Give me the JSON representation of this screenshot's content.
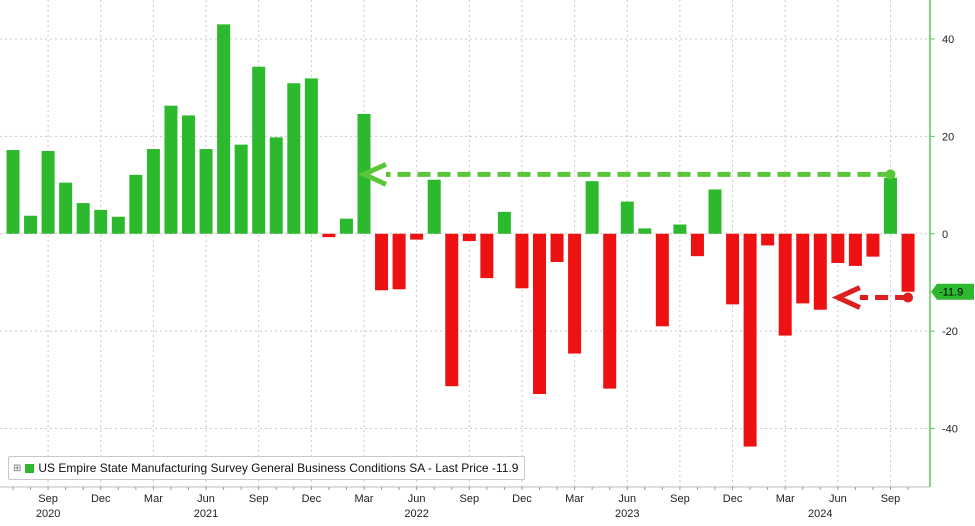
{
  "chart_data": {
    "type": "bar",
    "title": "",
    "xlabel": "",
    "ylabel": "",
    "ylim": [
      -52,
      48
    ],
    "yticks": [
      40,
      20,
      0,
      -20,
      -40
    ],
    "grid": true,
    "positive_color": "#2db92d",
    "negative_color": "#ee1111",
    "series": [
      {
        "name": "US Empire State Manufacturing Survey General Business Conditions SA - Last Price",
        "x": [
          "2020-07",
          "2020-08",
          "2020-09",
          "2020-10",
          "2020-11",
          "2020-12",
          "2021-01",
          "2021-02",
          "2021-03",
          "2021-04",
          "2021-05",
          "2021-06",
          "2021-07",
          "2021-08",
          "2021-09",
          "2021-10",
          "2021-11",
          "2021-12",
          "2022-01",
          "2022-02",
          "2022-03",
          "2022-04",
          "2022-05",
          "2022-06",
          "2022-07",
          "2022-08",
          "2022-09",
          "2022-10",
          "2022-11",
          "2022-12",
          "2023-01",
          "2023-02",
          "2023-03",
          "2023-04",
          "2023-05",
          "2023-06",
          "2023-07",
          "2023-08",
          "2023-09",
          "2023-10",
          "2023-11",
          "2023-12",
          "2024-01",
          "2024-02",
          "2024-03",
          "2024-04",
          "2024-05",
          "2024-06",
          "2024-07",
          "2024-08",
          "2024-09",
          "2024-10"
        ],
        "values": [
          17.2,
          3.7,
          17.0,
          10.5,
          6.3,
          4.9,
          3.5,
          12.1,
          17.4,
          26.3,
          24.3,
          17.4,
          43.0,
          18.3,
          34.3,
          19.8,
          30.9,
          31.9,
          -0.7,
          3.1,
          24.6,
          -11.6,
          -11.4,
          -1.2,
          11.1,
          -31.3,
          -1.5,
          -9.1,
          4.5,
          -11.2,
          -32.9,
          -5.8,
          -24.6,
          10.8,
          -31.8,
          6.6,
          1.1,
          -19.0,
          1.9,
          -4.6,
          9.1,
          -14.5,
          -43.7,
          -2.4,
          -20.9,
          -14.3,
          -15.6,
          -6.0,
          -6.6,
          -4.7,
          11.5,
          -11.9
        ]
      }
    ],
    "x_month_labels": [
      {
        "month": "2020-09",
        "label": "Sep"
      },
      {
        "month": "2020-12",
        "label": "Dec"
      },
      {
        "month": "2021-03",
        "label": "Mar"
      },
      {
        "month": "2021-06",
        "label": "Jun"
      },
      {
        "month": "2021-09",
        "label": "Sep"
      },
      {
        "month": "2021-12",
        "label": "Dec"
      },
      {
        "month": "2022-03",
        "label": "Mar"
      },
      {
        "month": "2022-06",
        "label": "Jun"
      },
      {
        "month": "2022-09",
        "label": "Sep"
      },
      {
        "month": "2022-12",
        "label": "Dec"
      },
      {
        "month": "2023-03",
        "label": "Mar"
      },
      {
        "month": "2023-06",
        "label": "Jun"
      },
      {
        "month": "2023-09",
        "label": "Sep"
      },
      {
        "month": "2023-12",
        "label": "Dec"
      },
      {
        "month": "2024-03",
        "label": "Mar"
      },
      {
        "month": "2024-06",
        "label": "Jun"
      },
      {
        "month": "2024-09",
        "label": "Sep"
      }
    ],
    "x_year_labels": [
      {
        "month": "2020-09",
        "label": "2020"
      },
      {
        "month": "2021-06",
        "label": "2021"
      },
      {
        "month": "2022-06",
        "label": "2022"
      },
      {
        "month": "2023-06",
        "label": "2023"
      },
      {
        "month": "2024-05",
        "label": "2024"
      }
    ],
    "last_value_label": "-11.9",
    "annotations": [
      {
        "type": "dashed-arrow",
        "color": "#5cc63a",
        "from_month": "2024-09",
        "to_month": "2022-03",
        "y": 12.2
      },
      {
        "type": "dashed-arrow",
        "color": "#dd1f1f",
        "from_month": "2024-10",
        "to_month": "2024-06",
        "y": -13.1
      }
    ]
  },
  "legend": {
    "label": "US Empire State Manufacturing Survey General Business Conditions SA - Last Price -11.9"
  }
}
